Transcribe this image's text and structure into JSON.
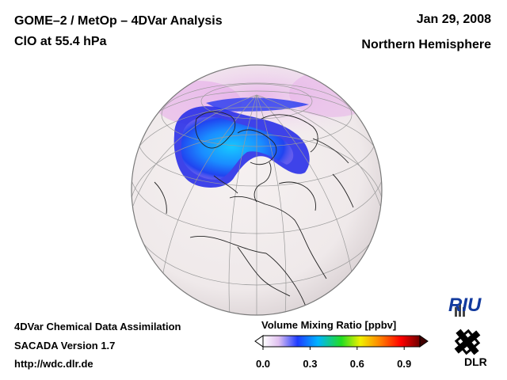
{
  "header": {
    "title": "GOME–2 / MetOp – 4DVar Analysis",
    "subtitle": "ClO at 55.4 hPa",
    "date": "Jan 29, 2008",
    "region": "Northern Hemisphere"
  },
  "footer": {
    "line1": "4DVar Chemical Data Assimilation",
    "line2": "SACADA Version 1.7",
    "line3": "http://wdc.dlr.de"
  },
  "colorbar": {
    "title": "Volume Mixing Ratio [ppbv]",
    "ticks": [
      "0.0",
      "0.3",
      "0.6",
      "0.9"
    ],
    "range": [
      0.0,
      1.0
    ],
    "colors": [
      "#ffffff",
      "#e0c0f0",
      "#1e3cff",
      "#00b4ff",
      "#22dd22",
      "#f0f000",
      "#ff8800",
      "#ff0000",
      "#700000"
    ]
  },
  "logos": {
    "riu": "RIU",
    "dlr": "DLR"
  }
}
